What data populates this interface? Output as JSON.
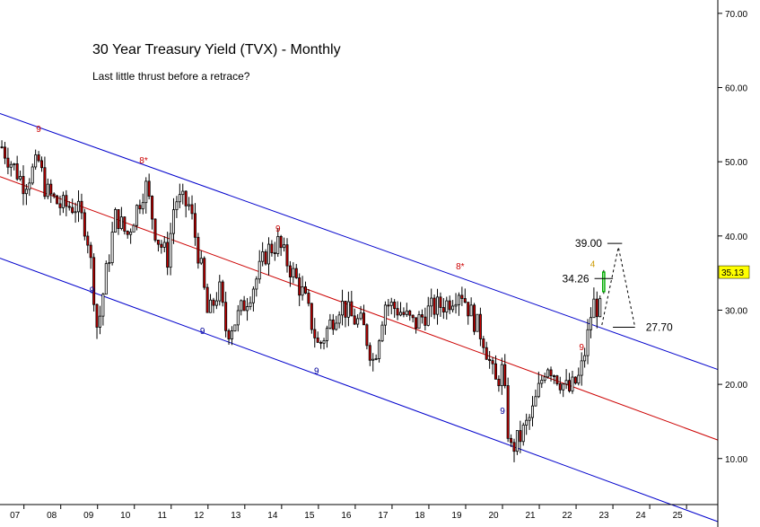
{
  "chart_data": {
    "type": "candlestick",
    "title": "30 Year Treasury Yield (TVX) - Monthly",
    "subtitle": "Last little thrust before a retrace?",
    "y_ticks": [
      "70.00",
      "60.00",
      "50.00",
      "40.00",
      "30.00",
      "20.00",
      "10.00"
    ],
    "y_tick_values": [
      70,
      60,
      50,
      40,
      30,
      20,
      10
    ],
    "ylim": [
      3.8,
      71.8
    ],
    "xlim": [
      2006.35,
      2025.85
    ],
    "x_ticks": [
      "07",
      "08",
      "09",
      "10",
      "11",
      "12",
      "13",
      "14",
      "15",
      "16",
      "17",
      "18",
      "19",
      "20",
      "21",
      "22",
      "23",
      "24",
      "25"
    ],
    "x_tick_values": [
      2007,
      2008,
      2009,
      2010,
      2011,
      2012,
      2013,
      2014,
      2015,
      2016,
      2017,
      2018,
      2019,
      2020,
      2021,
      2022,
      2023,
      2024,
      2025
    ],
    "last_price": "35.13",
    "anchor_closes": [
      [
        2006.4,
        52
      ],
      [
        2007.0,
        47
      ],
      [
        2007.4,
        50
      ],
      [
        2007.6,
        46
      ],
      [
        2008.0,
        44
      ],
      [
        2008.4,
        44
      ],
      [
        2008.7,
        41
      ],
      [
        2008.85,
        35
      ],
      [
        2009.0,
        27
      ],
      [
        2009.2,
        34
      ],
      [
        2009.5,
        43
      ],
      [
        2009.8,
        40
      ],
      [
        2010.3,
        47
      ],
      [
        2010.6,
        40
      ],
      [
        2010.9,
        37
      ],
      [
        2011.1,
        45
      ],
      [
        2011.5,
        44
      ],
      [
        2011.8,
        36
      ],
      [
        2012.0,
        29
      ],
      [
        2012.3,
        33
      ],
      [
        2012.5,
        27
      ],
      [
        2012.8,
        29
      ],
      [
        2013.3,
        34
      ],
      [
        2013.6,
        38
      ],
      [
        2013.9,
        39
      ],
      [
        2014.3,
        35
      ],
      [
        2014.6,
        32
      ],
      [
        2015.0,
        25
      ],
      [
        2015.4,
        29
      ],
      [
        2015.6,
        31
      ],
      [
        2015.9,
        29
      ],
      [
        2016.2,
        28
      ],
      [
        2016.5,
        23
      ],
      [
        2016.8,
        31
      ],
      [
        2017.2,
        30
      ],
      [
        2017.6,
        28
      ],
      [
        2018.0,
        30
      ],
      [
        2018.5,
        31
      ],
      [
        2018.85,
        33
      ],
      [
        2019.1,
        30
      ],
      [
        2019.5,
        26
      ],
      [
        2019.8,
        20
      ],
      [
        2020.0,
        22
      ],
      [
        2020.2,
        11
      ],
      [
        2020.5,
        13
      ],
      [
        2020.8,
        16
      ],
      [
        2021.2,
        23
      ],
      [
        2021.5,
        21
      ],
      [
        2021.8,
        19
      ],
      [
        2022.1,
        21
      ],
      [
        2022.3,
        26
      ],
      [
        2022.45,
        31
      ],
      [
        2022.65,
        30
      ]
    ],
    "last_candles": [
      {
        "x": 2022.75,
        "open": 32.5,
        "high": 35.4,
        "low": 32.2,
        "close": 35.13
      }
    ],
    "channels": [
      {
        "name": "upper",
        "color": "#0000cc",
        "points": [
          [
            2006.35,
            56.5
          ],
          [
            2025.85,
            22.0
          ]
        ]
      },
      {
        "name": "median",
        "color": "#cc0000",
        "points": [
          [
            2006.35,
            48.0
          ],
          [
            2025.85,
            12.5
          ]
        ]
      },
      {
        "name": "lower",
        "color": "#0000cc",
        "points": [
          [
            2006.35,
            37.0
          ],
          [
            2025.85,
            1.5
          ]
        ]
      }
    ],
    "count_labels": [
      {
        "text": "9",
        "x": 2007.4,
        "y": 54.0,
        "color": "#cc0000"
      },
      {
        "text": "8*",
        "x": 2010.25,
        "y": 49.8,
        "color": "#cc0000"
      },
      {
        "text": "9",
        "x": 2008.85,
        "y": 32.3,
        "color": "#000099"
      },
      {
        "text": "9",
        "x": 2011.85,
        "y": 26.8,
        "color": "#000099"
      },
      {
        "text": "9",
        "x": 2013.9,
        "y": 40.6,
        "color": "#cc0000"
      },
      {
        "text": "9",
        "x": 2014.95,
        "y": 21.4,
        "color": "#000099"
      },
      {
        "text": "8*",
        "x": 2018.85,
        "y": 35.5,
        "color": "#cc0000"
      },
      {
        "text": "9",
        "x": 2020.0,
        "y": 16.0,
        "color": "#000099"
      },
      {
        "text": "9",
        "x": 2022.15,
        "y": 24.6,
        "color": "#cc0000"
      },
      {
        "text": "4",
        "x": 2022.45,
        "y": 35.8,
        "color": "#cc9900"
      }
    ],
    "levels": [
      {
        "label": "39.00",
        "value": 39.0,
        "x1": 2022.85,
        "x2": 2023.25
      },
      {
        "label": "34.26",
        "value": 34.26,
        "x1": 2022.5,
        "x2": 2023.0
      },
      {
        "label": "27.70",
        "value": 27.7,
        "x1": 2023.0,
        "x2": 2023.6
      }
    ],
    "projection": [
      [
        2022.7,
        28.0
      ],
      [
        2023.15,
        38.5
      ],
      [
        2023.6,
        27.7
      ]
    ]
  }
}
